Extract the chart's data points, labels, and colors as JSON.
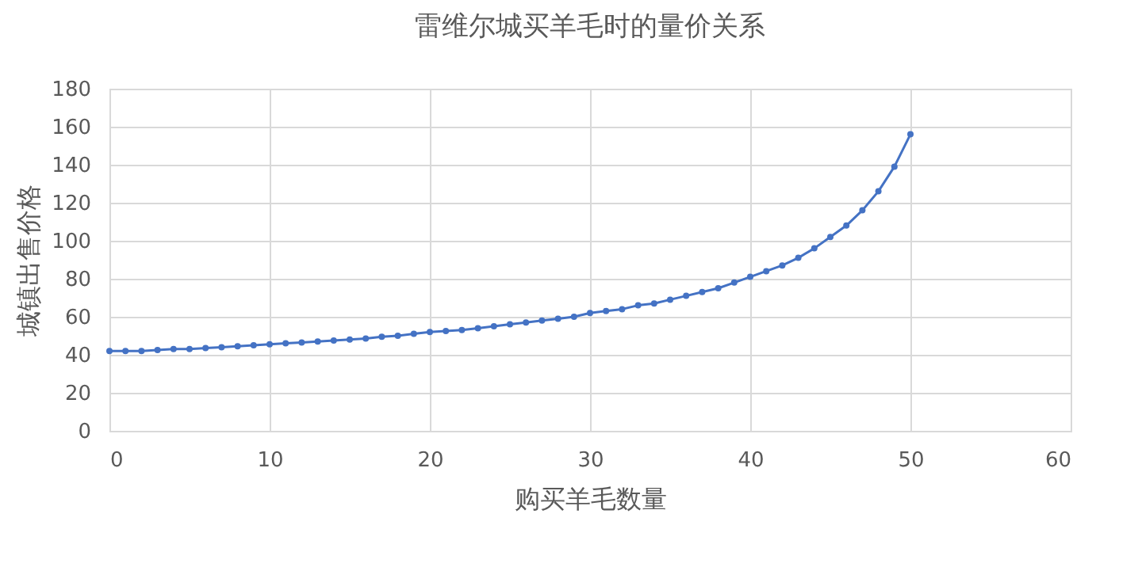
{
  "chart_data": {
    "type": "line",
    "title": "雷维尔城买羊毛时的量价关系",
    "xlabel": "购买羊毛数量",
    "ylabel": "城镇出售价格",
    "x": [
      0,
      1,
      2,
      3,
      4,
      5,
      6,
      7,
      8,
      9,
      10,
      11,
      12,
      13,
      14,
      15,
      16,
      17,
      18,
      19,
      20,
      21,
      22,
      23,
      24,
      25,
      26,
      27,
      28,
      29,
      30,
      31,
      32,
      33,
      34,
      35,
      36,
      37,
      38,
      39,
      40,
      41,
      42,
      43,
      44,
      45,
      46,
      47,
      48,
      49,
      50
    ],
    "series": [
      {
        "color": "#4472c4",
        "values": [
          42,
          42,
          42,
          42.5,
          43,
          43,
          43.5,
          44,
          44.5,
          45,
          45.5,
          46,
          46.5,
          47,
          47.5,
          48,
          48.5,
          49.5,
          50,
          51,
          52,
          52.5,
          53,
          54,
          55,
          56,
          57,
          58,
          59,
          60,
          62,
          63,
          64,
          66,
          67,
          69,
          71,
          73,
          75,
          78,
          81,
          84,
          87,
          91,
          96,
          102,
          108,
          116,
          126,
          139,
          156
        ]
      }
    ],
    "xlim": [
      0,
      60
    ],
    "xticks": [
      0,
      10,
      20,
      30,
      40,
      50,
      60
    ],
    "ylim": [
      0,
      180
    ],
    "yticks": [
      0,
      20,
      40,
      60,
      80,
      100,
      120,
      140,
      160,
      180
    ],
    "grid": true,
    "marker": "circle",
    "line_style": "solid"
  }
}
